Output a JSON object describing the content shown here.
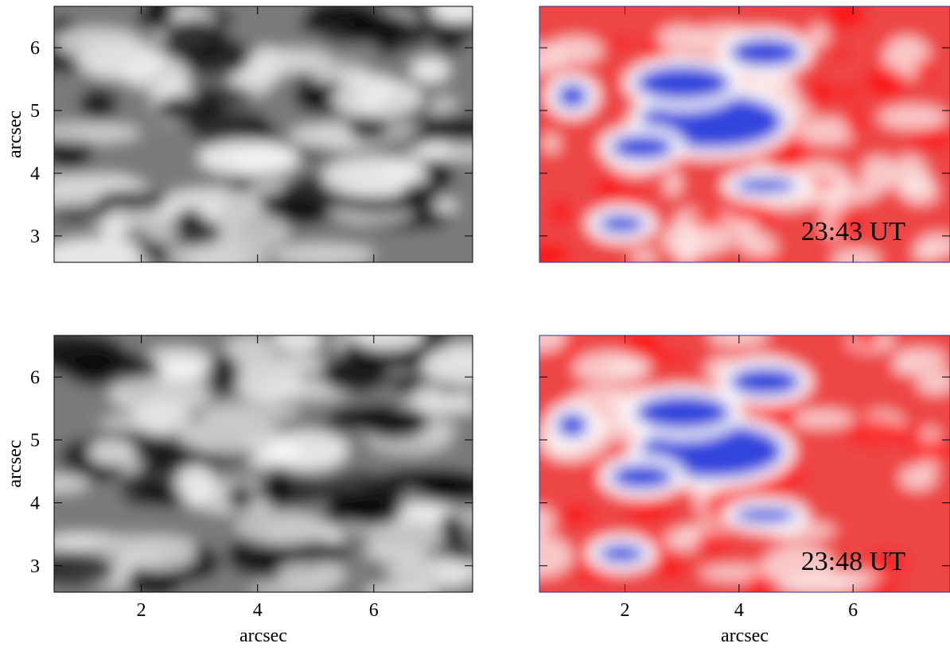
{
  "chart_data": {
    "type": "image",
    "xlim": [
      0.5,
      7.7
    ],
    "ylim": [
      2.58,
      6.66
    ],
    "xticks": [
      2,
      4,
      6
    ],
    "yticks": [
      3,
      4,
      5,
      6
    ],
    "x_label": "arcsec",
    "y_label": "arcsec",
    "panels": [
      {
        "colormap": "gray"
      },
      {
        "colormap": "bwr",
        "annotation": "23:43 UT"
      },
      {
        "colormap": "gray"
      },
      {
        "colormap": "bwr",
        "annotation": "23:48 UT"
      }
    ]
  }
}
